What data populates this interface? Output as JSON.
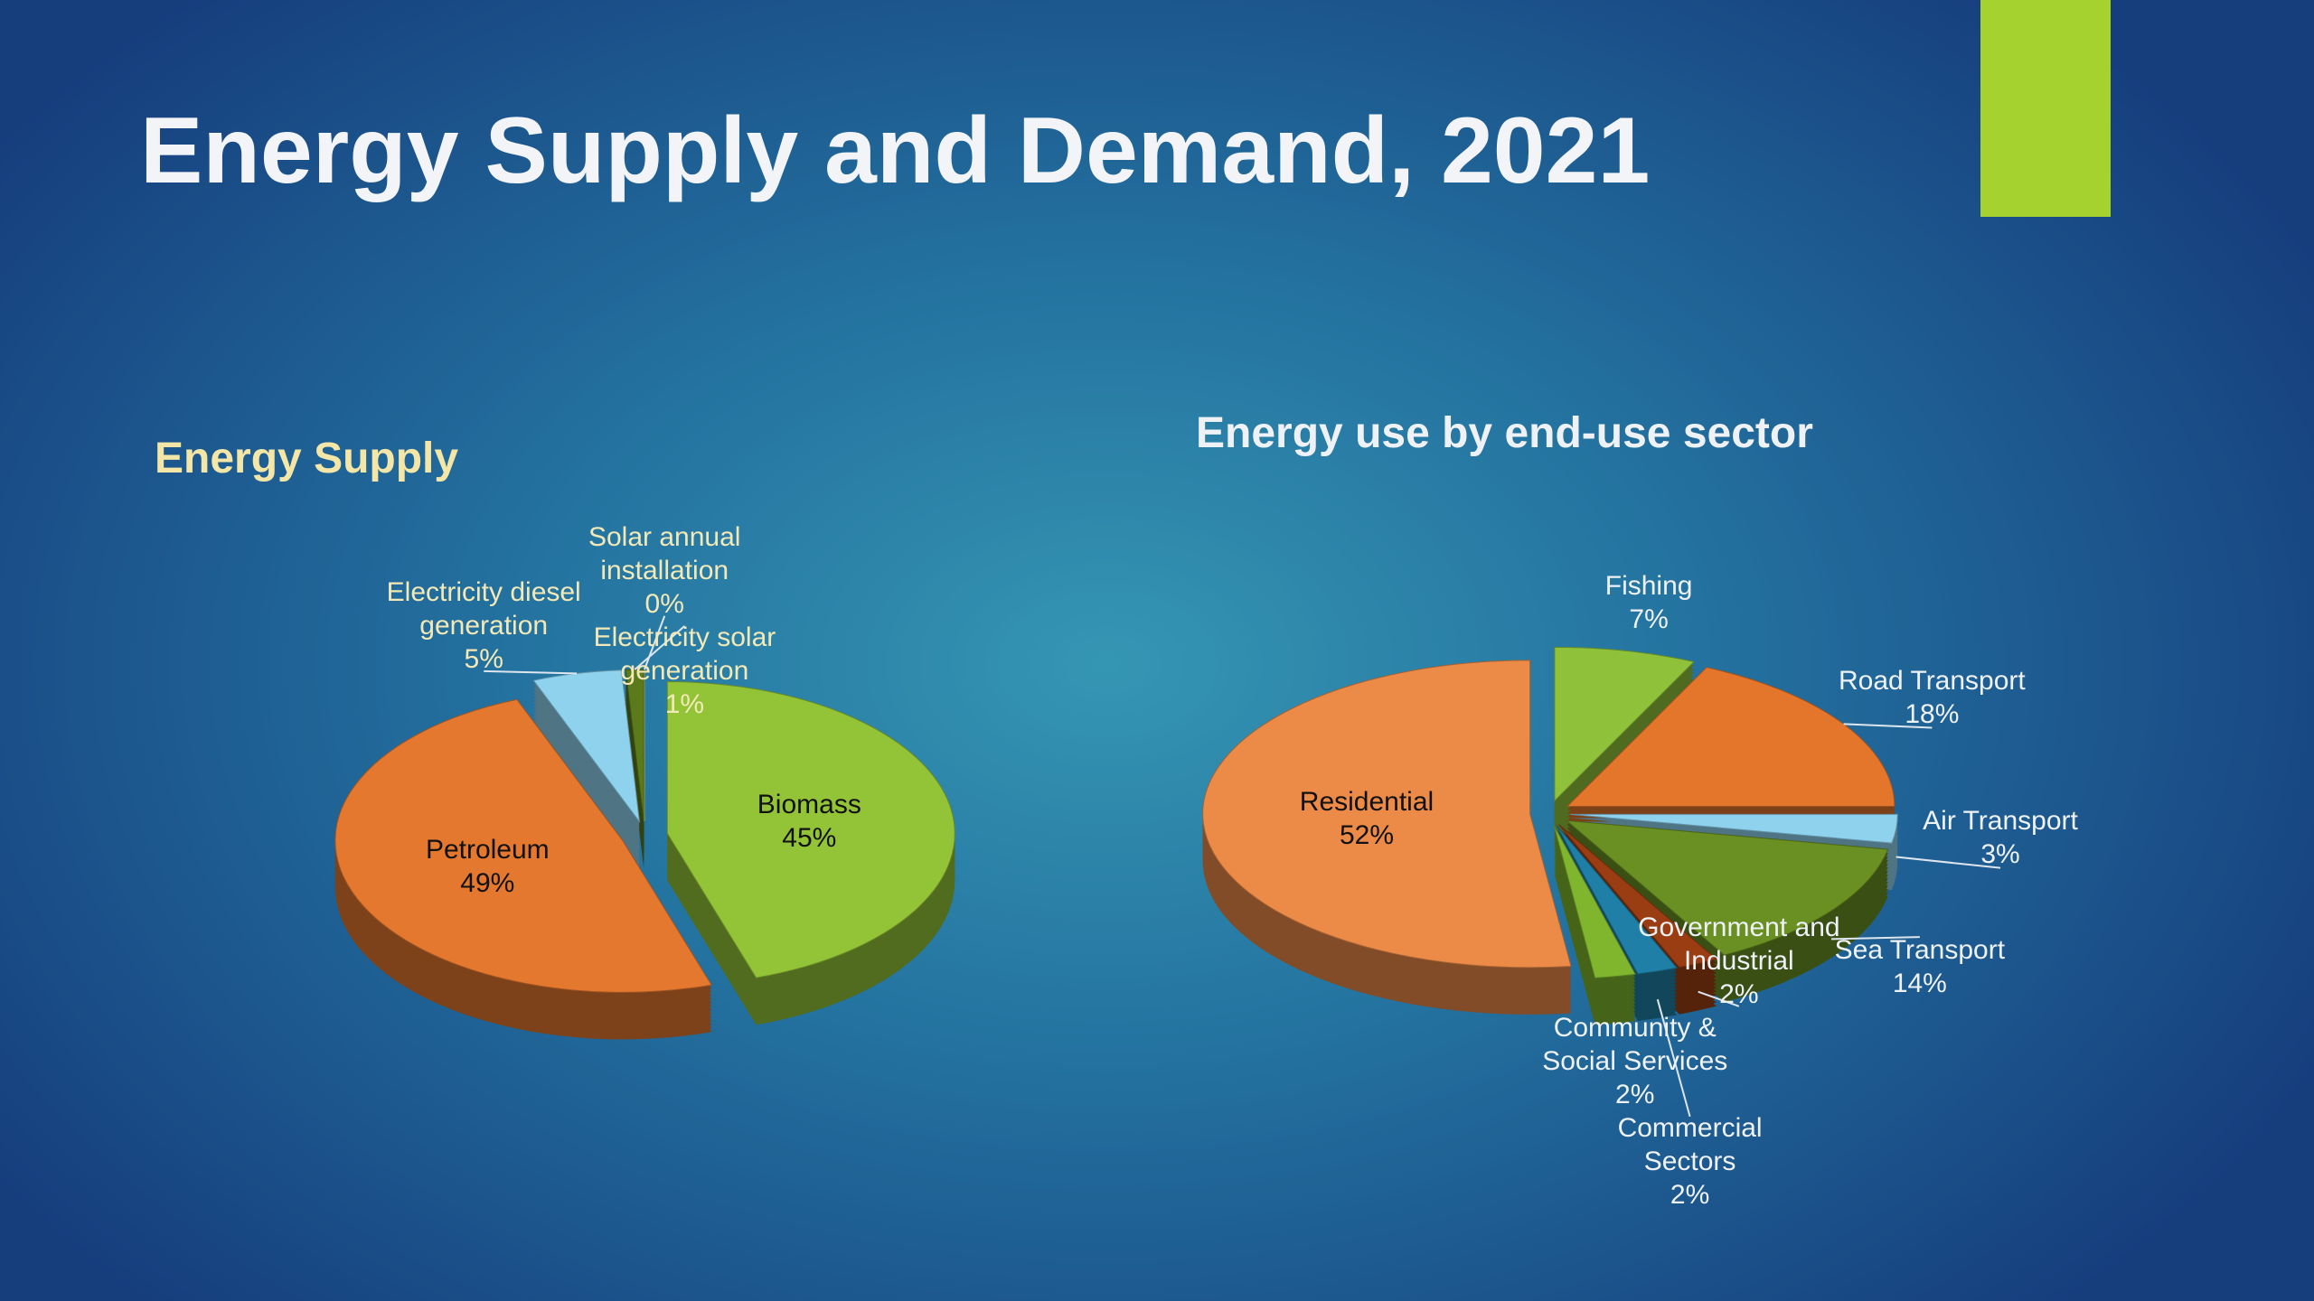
{
  "title": "Energy Supply and Demand, 2021",
  "chart_data": [
    {
      "type": "pie",
      "title": "Energy Supply",
      "categories": [
        "Biomass",
        "Petroleum",
        "Electricity diesel generation",
        "Electricity solar generation",
        "Solar annual installation"
      ],
      "values": [
        45,
        49,
        5,
        1,
        0
      ],
      "value_labels": [
        "45%",
        "49%",
        "5%",
        "1%",
        "0%"
      ],
      "colors": [
        "#93c437",
        "#e4782f",
        "#8fd2ee",
        "#5a7a1c",
        "#c9dd7a"
      ]
    },
    {
      "type": "pie",
      "title": "Energy use by end-use sector",
      "categories": [
        "Fishing",
        "Road Transport",
        "Air Transport",
        "Sea Transport",
        "Government and Industrial",
        "Commercial Sectors",
        "Community & Social Services",
        "Residential"
      ],
      "values": [
        7,
        18,
        3,
        14,
        2,
        2,
        2,
        52
      ],
      "value_labels": [
        "7%",
        "18%",
        "3%",
        "14%",
        "2%",
        "2%",
        "2%",
        "52%"
      ],
      "colors": [
        "#8fc23a",
        "#e4762c",
        "#8fd2ee",
        "#6a8f22",
        "#9a3d12",
        "#1f7fa6",
        "#7fb62e",
        "#ec8a48"
      ]
    }
  ]
}
